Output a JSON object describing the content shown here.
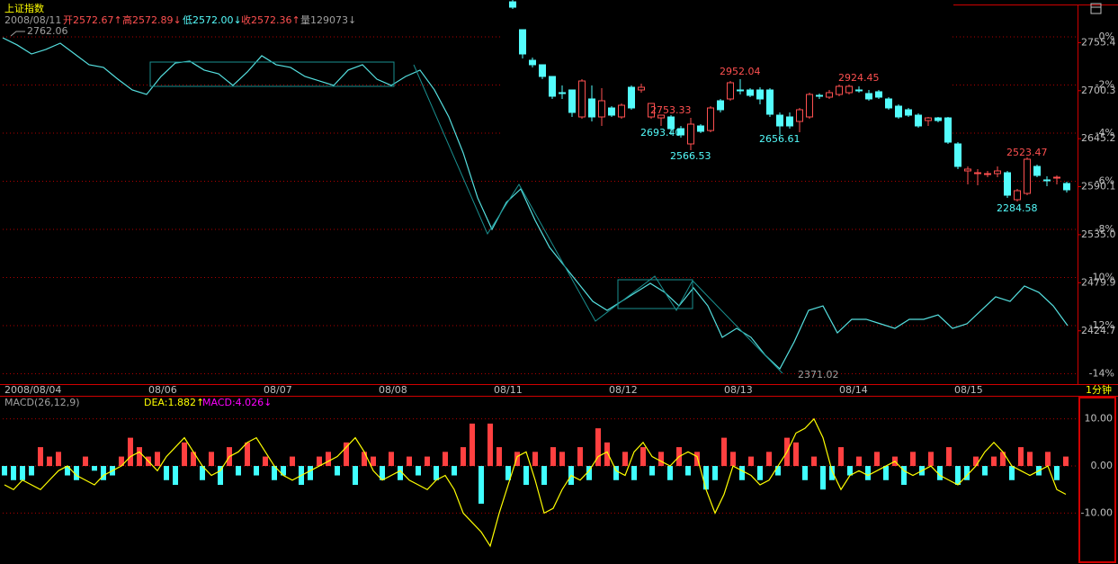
{
  "chart_data": [
    {
      "type": "line",
      "title": "上证指数",
      "info": [
        {
          "text": "2008/08/11",
          "color": "#a0a0a0"
        },
        {
          "text": "开2572.67↑",
          "color": "#ff5050"
        },
        {
          "text": "高2572.89↓",
          "color": "#ff5050"
        },
        {
          "text": "低2572.00↓",
          "color": "#54fcfc"
        },
        {
          "text": "收2572.36↑",
          "color": "#ff5050"
        },
        {
          "text": "量129073↓",
          "color": "#a0a0a0"
        }
      ],
      "categories": [
        "2008/08/04",
        null,
        null,
        null,
        null,
        null,
        null,
        null,
        null,
        null,
        "08/06",
        null,
        null,
        null,
        null,
        null,
        null,
        null,
        "08/07",
        null,
        null,
        null,
        null,
        null,
        null,
        null,
        "08/08",
        null,
        null,
        null,
        null,
        null,
        null,
        null,
        "08/11",
        null,
        null,
        null,
        null,
        null,
        null,
        null,
        "08/12",
        null,
        null,
        null,
        null,
        null,
        null,
        null,
        "08/13",
        null,
        null,
        null,
        null,
        null,
        null,
        null,
        "08/14",
        null,
        null,
        null,
        null,
        null,
        null,
        null,
        "08/15",
        null,
        null,
        null,
        null,
        null,
        null,
        null,
        null
      ],
      "values": [
        2761.0,
        2752.8,
        2742.4,
        2747.6,
        2754.8,
        2742.4,
        2730.1,
        2727.0,
        2713.5,
        2701.2,
        2696.0,
        2716.6,
        2732.1,
        2734.1,
        2723.9,
        2719.7,
        2706.3,
        2721.8,
        2740.4,
        2730.1,
        2727.0,
        2716.6,
        2711.5,
        2706.3,
        2723.9,
        2730.1,
        2713.5,
        2706.3,
        2716.6,
        2723.9,
        2701.2,
        2670.2,
        2628.9,
        2577.4,
        2541.1,
        2572.1,
        2587.6,
        2551.4,
        2520.4,
        2499.8,
        2479.2,
        2458.5,
        2448.2,
        2458.5,
        2468.8,
        2479.2,
        2468.8,
        2453.3,
        2474.0,
        2453.3,
        2417.2,
        2427.5,
        2417.2,
        2396.5,
        2381.0,
        2412.0,
        2448.2,
        2453.3,
        2422.3,
        2437.9,
        2437.9,
        2432.7,
        2427.5,
        2437.9,
        2437.9,
        2443.0,
        2427.5,
        2432.7,
        2448.2,
        2463.7,
        2458.5,
        2476.1,
        2468.8,
        2453.3,
        2430.6
      ],
      "color": "#55e0e0",
      "ylim": [
        2365.6,
        2799.2
      ],
      "yticks": [
        2755.4,
        2700.3,
        2645.2,
        2590.1,
        {
          "value": 2535.0,
          "label": "2535.0"
        },
        2479.9,
        2424.7
      ],
      "y2lim": [
        -14.355,
        1.346
      ],
      "y2ticks": [
        {
          "value": 0,
          "label": "0%"
        },
        {
          "value": -2,
          "label": "-2%"
        },
        {
          "value": -4,
          "label": "-4%"
        },
        {
          "value": -6,
          "label": "-6%"
        },
        {
          "value": -8,
          "label": "-8%"
        },
        {
          "value": -10,
          "label": "-10%"
        },
        {
          "value": -12,
          "label": "-12%"
        },
        {
          "value": -14,
          "label": "-14%"
        }
      ],
      "grid": true,
      "annotations": [
        "2762.06",
        "2371.02"
      ],
      "x_unit_label": "1分钟"
    },
    {
      "type": "candlestick",
      "ohlc": [
        [
          3414.1,
          3424.4,
          3373.1,
          3383.3
        ],
        [
          3255.0,
          3255.0,
          3090.7,
          3116.4
        ],
        [
          3080.4,
          3095.8,
          3039.4,
          3054.8
        ],
        [
          3054.8,
          3054.8,
          2972.6,
          2988.0
        ],
        [
          2988.0,
          2988.0,
          2859.7,
          2875.1
        ],
        [
          2895.6,
          2936.7,
          2859.7,
          2890.5
        ],
        [
          2911.0,
          2911.0,
          2757.0,
          2782.7
        ],
        [
          2757.0,
          2972.6,
          2746.7,
          2962.3
        ],
        [
          2859.7,
          2936.7,
          2731.3,
          2757.0
        ],
        [
          2757.0,
          2921.3,
          2705.6,
          2849.4
        ],
        [
          2808.3,
          2818.6,
          2757.0,
          2767.2
        ],
        [
          2757.0,
          2834.0,
          2746.7,
          2823.7
        ],
        [
          2926.4,
          2936.7,
          2798.1,
          2808.3
        ],
        [
          2911.0,
          2946.9,
          2895.6,
          2926.4
        ],
        [
          2757.0,
          2828.9,
          2746.7,
          2834.0
        ],
        [
          2751.6,
          2767.2,
          2705.6,
          2767.2
        ],
        [
          2757.0,
          2767.2,
          2654.3,
          2690.2
        ],
        [
          2690.2,
          2705.6,
          2638.8,
          2654.3
        ],
        [
          2603.0,
          2751.6,
          2567.0,
          2715.9
        ],
        [
          2705.6,
          2715.9,
          2664.6,
          2674.8
        ],
        [
          2679.5,
          2818.6,
          2669.7,
          2808.3
        ],
        [
          2849.4,
          2859.7,
          2782.7,
          2798.1
        ],
        [
          2859.7,
          2962.3,
          2849.4,
          2952.1
        ],
        [
          2911.0,
          2972.6,
          2885.3,
          2905.9
        ],
        [
          2911.0,
          2921.3,
          2869.9,
          2880.2
        ],
        [
          2911.0,
          2926.4,
          2828.9,
          2859.7
        ],
        [
          2911.0,
          2921.3,
          2757.0,
          2772.4
        ],
        [
          2767.2,
          2782.7,
          2654.3,
          2705.6
        ],
        [
          2757.0,
          2782.7,
          2690.2,
          2705.6
        ],
        [
          2731.3,
          2808.3,
          2669.7,
          2798.1
        ],
        [
          2757.0,
          2895.6,
          2746.7,
          2885.3
        ],
        [
          2880.2,
          2890.5,
          2859.7,
          2875.1
        ],
        [
          2869.9,
          2911.0,
          2859.7,
          2895.6
        ],
        [
          2885.3,
          2941.8,
          2875.1,
          2931.5
        ],
        [
          2895.6,
          2941.8,
          2885.3,
          2931.5
        ],
        [
          2911.0,
          2931.5,
          2895.6,
          2905.9
        ],
        [
          2890.5,
          2911.0,
          2849.4,
          2859.7
        ],
        [
          2900.7,
          2911.0,
          2859.7,
          2869.9
        ],
        [
          2859.7,
          2869.9,
          2798.1,
          2808.3
        ],
        [
          2818.6,
          2828.9,
          2746.7,
          2757.0
        ],
        [
          2798.1,
          2808.3,
          2757.0,
          2767.2
        ],
        [
          2767.2,
          2777.5,
          2695.4,
          2705.6
        ],
        [
          2736.4,
          2757.0,
          2705.6,
          2751.6
        ],
        [
          2751.6,
          2757.0,
          2726.2,
          2736.4
        ],
        [
          2751.6,
          2757.0,
          2603.0,
          2613.2
        ],
        [
          2603.0,
          2613.2,
          2459.2,
          2474.6
        ],
        [
          2448.9,
          2474.6,
          2371.9,
          2459.2
        ],
        [
          2433.5,
          2459.2,
          2366.7,
          2438.7
        ],
        [
          2428.4,
          2448.9,
          2413.0,
          2433.5
        ],
        [
          2433.5,
          2474.6,
          2413.0,
          2448.9
        ],
        [
          2438.7,
          2448.9,
          2294.9,
          2310.3
        ],
        [
          2284.7,
          2346.3,
          2274.4,
          2336.0
        ],
        [
          2320.6,
          2525.9,
          2310.3,
          2515.7
        ],
        [
          2474.6,
          2484.9,
          2413.0,
          2423.3
        ],
        [
          2397.6,
          2418.2,
          2361.6,
          2392.5
        ],
        [
          2407.9,
          2423.3,
          2371.9,
          2413.0
        ],
        [
          2377.1,
          2387.3,
          2325.7,
          2341.1
        ]
      ],
      "up_color": "#ff5050",
      "down_color": "#54fcfc",
      "ylim": [
        2140.9,
        3424.4
      ],
      "annotations": [
        "2952.04",
        "2753.33",
        "2693.40",
        "2566.53",
        "2656.61",
        "2924.45",
        "2523.47",
        "2284.58"
      ]
    },
    {
      "type": "macd",
      "indicator": "MACD(26,12,9)",
      "series": [
        {
          "name": "DEA:1.882↑",
          "type": "line",
          "color": "#ffff00",
          "values": [
            -4,
            -5,
            -3,
            -4,
            -5,
            -3,
            -1,
            0,
            -2,
            -3,
            -4,
            -2,
            -1,
            0,
            2,
            3,
            1,
            -1,
            2,
            4,
            6,
            3,
            0,
            -2,
            -1,
            2,
            3,
            5,
            6,
            3,
            0,
            -2,
            -3,
            -2,
            -1,
            0,
            1,
            2,
            4,
            6,
            3,
            -1,
            -3,
            -2,
            -1,
            -3,
            -4,
            -5,
            -3,
            -2,
            -5,
            -10,
            -12,
            -14,
            -17,
            -10,
            -4,
            2,
            3,
            -3,
            -10,
            -9,
            -5,
            -2,
            -3,
            -1,
            2,
            3,
            -1,
            -2,
            3,
            5,
            2,
            1,
            0,
            2,
            3,
            2,
            -5,
            -10,
            -6,
            0,
            -1,
            -2,
            -4,
            -3,
            0,
            3,
            7,
            8,
            10,
            6,
            -1,
            -5,
            -2,
            -1,
            -2,
            -1,
            0,
            1,
            -1,
            -2,
            -1,
            0,
            -2,
            -3,
            -4,
            -2,
            0,
            3,
            5,
            3,
            0,
            -1,
            -2,
            -1,
            0,
            -5,
            -6
          ]
        },
        {
          "name": "MACD:4.026↓",
          "type": "bar",
          "color": "#ff00ff",
          "up_color": "#ff4040",
          "down_color": "#40ffff",
          "values": [
            -2,
            -3,
            -3,
            -2,
            4,
            2,
            3,
            -2,
            -3,
            2,
            -1,
            -3,
            -2,
            2,
            6,
            4,
            2,
            3,
            -3,
            -4,
            5,
            3,
            -3,
            3,
            -4,
            4,
            -2,
            5,
            -2,
            2,
            -3,
            -2,
            2,
            -4,
            -3,
            2,
            3,
            -2,
            5,
            -4,
            3,
            2,
            -3,
            3,
            -3,
            2,
            -2,
            2,
            -3,
            3,
            -2,
            4,
            9,
            -8,
            9,
            4,
            -3,
            3,
            -4,
            3,
            -4,
            4,
            3,
            -4,
            4,
            -3,
            8,
            5,
            -3,
            3,
            -3,
            4,
            -2,
            3,
            -3,
            4,
            -2,
            3,
            -5,
            -3,
            6,
            3,
            -3,
            2,
            -3,
            3,
            -2,
            6,
            5,
            -3,
            2,
            -5,
            -3,
            4,
            -2,
            2,
            -3,
            3,
            -3,
            2,
            -4,
            3,
            -2,
            3,
            -3,
            4,
            -4,
            -3,
            2,
            -2,
            2,
            3,
            -3,
            4,
            3,
            -2,
            3,
            -3,
            2
          ]
        }
      ],
      "ylim": [
        -20.8,
        14.9
      ],
      "yticks": [
        {
          "value": 10,
          "label": "10.00"
        },
        {
          "value": 0,
          "label": "0.00"
        },
        {
          "value": -10,
          "label": "-10.00"
        }
      ],
      "grid": true
    }
  ]
}
